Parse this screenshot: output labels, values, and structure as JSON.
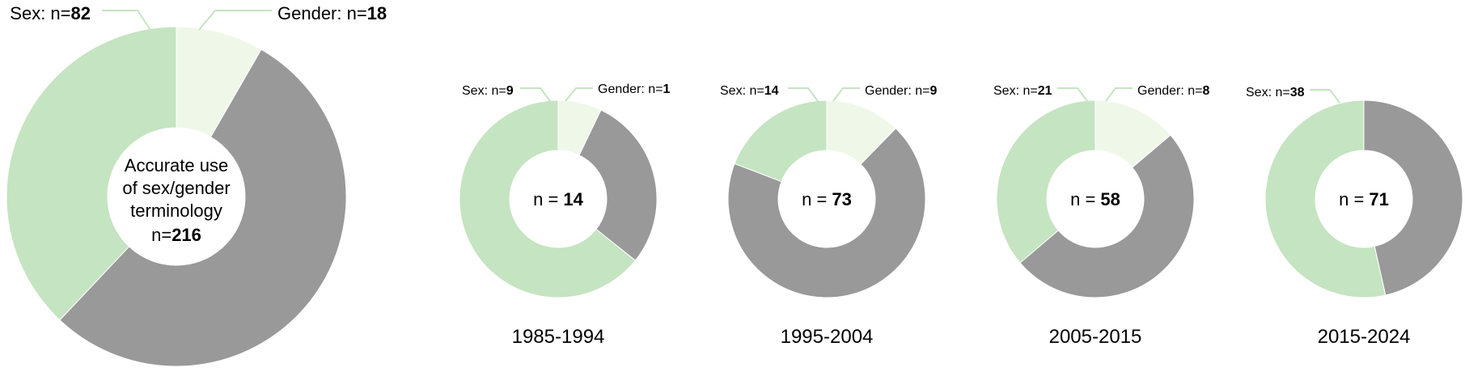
{
  "colors": {
    "sex": "#c5e4c1",
    "gender": "#eff7e9",
    "other": "#999999",
    "leader": "#c5e4c1"
  },
  "chart_data": [
    {
      "type": "pie",
      "total_prefix": "n=",
      "total": 216,
      "center_lines": [
        "Accurate use",
        "of sex/gender",
        "terminology"
      ],
      "period": "",
      "slices": [
        {
          "key": "gender",
          "label_prefix": "Gender: n=",
          "value": 18
        },
        {
          "key": "other",
          "label_prefix": "",
          "value": 116
        },
        {
          "key": "sex",
          "label_prefix": "Sex: n=",
          "value": 82
        }
      ]
    },
    {
      "type": "pie",
      "total_prefix": "n = ",
      "total": 14,
      "period": "1985-1994",
      "slices": [
        {
          "key": "gender",
          "label_prefix": "Gender: n=",
          "value": 1
        },
        {
          "key": "other",
          "label_prefix": "",
          "value": 4
        },
        {
          "key": "sex",
          "label_prefix": "Sex: n=",
          "value": 9
        }
      ]
    },
    {
      "type": "pie",
      "total_prefix": "n = ",
      "total": 73,
      "period": "1995-2004",
      "slices": [
        {
          "key": "gender",
          "label_prefix": "Gender: n=",
          "value": 9
        },
        {
          "key": "other",
          "label_prefix": "",
          "value": 50
        },
        {
          "key": "sex",
          "label_prefix": "Sex: n=",
          "value": 14
        }
      ]
    },
    {
      "type": "pie",
      "total_prefix": "n = ",
      "total": 58,
      "period": "2005-2015",
      "slices": [
        {
          "key": "gender",
          "label_prefix": "Gender: n=",
          "value": 8
        },
        {
          "key": "other",
          "label_prefix": "",
          "value": 29
        },
        {
          "key": "sex",
          "label_prefix": "Sex: n=",
          "value": 21
        }
      ]
    },
    {
      "type": "pie",
      "total_prefix": "n = ",
      "total": 71,
      "period": "2015-2024",
      "slices": [
        {
          "key": "other",
          "label_prefix": "",
          "value": 33
        },
        {
          "key": "sex",
          "label_prefix": "Sex: n=",
          "value": 38
        }
      ]
    }
  ]
}
